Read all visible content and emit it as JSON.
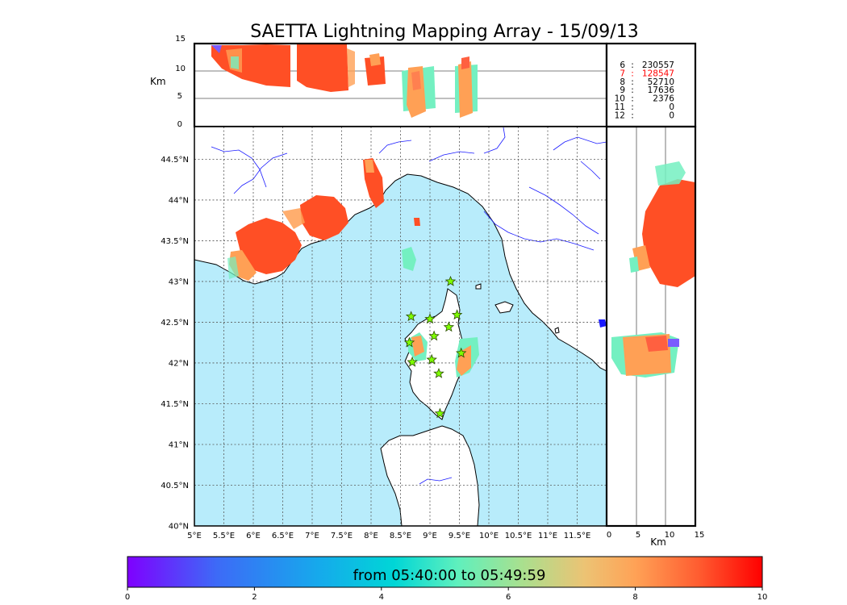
{
  "title": "SAETTA Lightning Mapping Array - 15/09/13",
  "colors": {
    "sea": "#b8ecfb",
    "land": "#ffffff",
    "coast": "#000000",
    "river": "#1a1aff",
    "grid": "#555555",
    "highlight_stat": "#ff0000"
  },
  "top_panel": {
    "ylabel": "Km",
    "yticks": [
      "15",
      "10",
      "5",
      "0"
    ]
  },
  "right_panel": {
    "xlabel": "Km",
    "xticks": [
      "0",
      "5",
      "10",
      "15"
    ]
  },
  "map": {
    "lon_ticks": [
      "5°E",
      "5.5°E",
      "6°E",
      "6.5°E",
      "7°E",
      "7.5°E",
      "8°E",
      "8.5°E",
      "9°E",
      "9.5°E",
      "10°E",
      "10.5°E",
      "11°E",
      "11.5°E"
    ],
    "lat_ticks": [
      "44.5°N",
      "44°N",
      "43.5°N",
      "43°N",
      "42.5°N",
      "42°N",
      "41.5°N",
      "41°N",
      "40.5°N",
      "40°N"
    ],
    "stations": [
      {
        "lon": 9.35,
        "lat": 43.0
      },
      {
        "lon": 8.68,
        "lat": 42.57
      },
      {
        "lon": 9.0,
        "lat": 42.54
      },
      {
        "lon": 9.46,
        "lat": 42.59
      },
      {
        "lon": 9.32,
        "lat": 42.44
      },
      {
        "lon": 9.07,
        "lat": 42.33
      },
      {
        "lon": 8.65,
        "lat": 42.25
      },
      {
        "lon": 9.53,
        "lat": 42.12
      },
      {
        "lon": 9.03,
        "lat": 42.04
      },
      {
        "lon": 8.7,
        "lat": 42.01
      },
      {
        "lon": 9.15,
        "lat": 41.87
      },
      {
        "lon": 9.17,
        "lat": 41.38
      }
    ]
  },
  "stats": [
    {
      "stations": "6",
      "sep": ":",
      "count": "230557",
      "highlight": false
    },
    {
      "stations": "7",
      "sep": ":",
      "count": "128547",
      "highlight": true
    },
    {
      "stations": "8",
      "sep": ":",
      "count": "52710",
      "highlight": false
    },
    {
      "stations": "9",
      "sep": ":",
      "count": "17636",
      "highlight": false
    },
    {
      "stations": "10",
      "sep": ":",
      "count": "2376",
      "highlight": false
    },
    {
      "stations": "11",
      "sep": ":",
      "count": "0",
      "highlight": false
    },
    {
      "stations": "12",
      "sep": ":",
      "count": "0",
      "highlight": false
    }
  ],
  "colorbar": {
    "label": "from 05:40:00 to 05:49:59",
    "ticks": [
      "0",
      "2",
      "4",
      "6",
      "8",
      "10"
    ],
    "min": 0,
    "max": 10,
    "stops": [
      "#7f00ff",
      "#3d6af7",
      "#00c4e6",
      "#7ef0b8",
      "#c3d97f",
      "#ffa256",
      "#ff4b26",
      "#ff0000"
    ]
  }
}
